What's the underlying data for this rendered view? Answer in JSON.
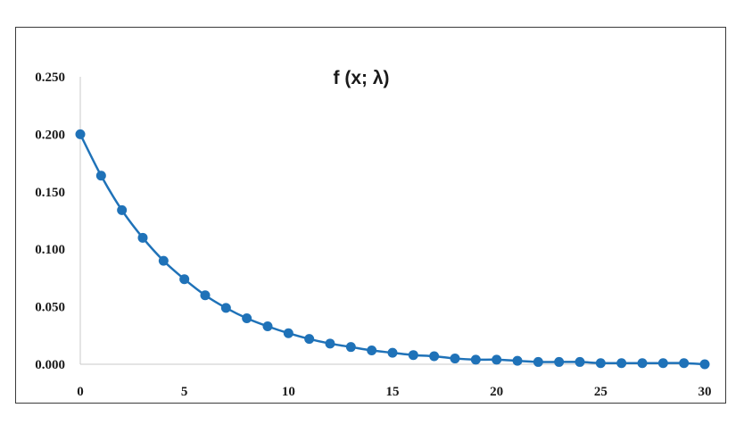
{
  "chart_data": {
    "type": "line",
    "title": "f (x; λ)",
    "xlabel": "",
    "ylabel": "",
    "xlim": [
      0,
      30
    ],
    "ylim": [
      0,
      0.25
    ],
    "x_ticks": [
      "0",
      "5",
      "10",
      "15",
      "20",
      "25",
      "30"
    ],
    "y_ticks": [
      "0.000",
      "0.050",
      "0.100",
      "0.150",
      "0.200",
      "0.250"
    ],
    "grid": false,
    "legend": "none",
    "series": [
      {
        "color": "#1f72b8",
        "marker": "circle",
        "x": [
          0,
          1,
          2,
          3,
          4,
          5,
          6,
          7,
          8,
          9,
          10,
          11,
          12,
          13,
          14,
          15,
          16,
          17,
          18,
          19,
          20,
          21,
          22,
          23,
          24,
          25,
          26,
          27,
          28,
          29,
          30
        ],
        "y": [
          0.2,
          0.164,
          0.134,
          0.11,
          0.09,
          0.074,
          0.06,
          0.049,
          0.04,
          0.033,
          0.027,
          0.022,
          0.018,
          0.015,
          0.012,
          0.01,
          0.008,
          0.007,
          0.005,
          0.004,
          0.004,
          0.003,
          0.002,
          0.002,
          0.002,
          0.001,
          0.001,
          0.001,
          0.001,
          0.001,
          0.0
        ]
      }
    ]
  }
}
